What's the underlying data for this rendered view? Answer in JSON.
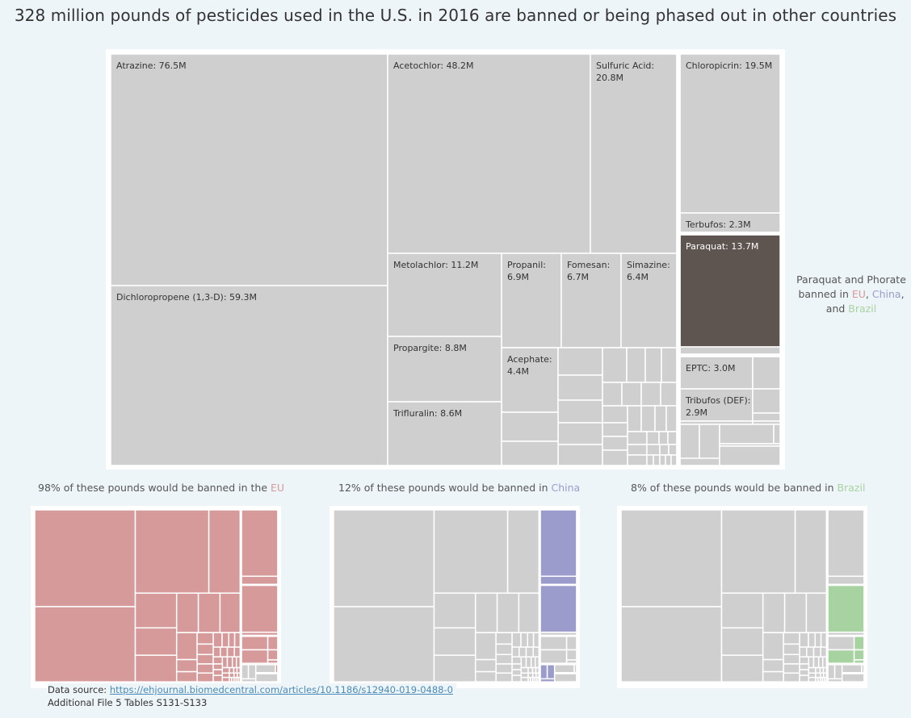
{
  "title": "328 million pounds of pesticides used in the U.S. in 2016 are banned or being phased out in other countries",
  "note": {
    "line1": "Paraquat and Phorate",
    "line2_prefix": "banned in ",
    "eu": "EU",
    "comma": ", ",
    "china": "China",
    "line3_prefix": "and ",
    "brazil": "Brazil"
  },
  "subtitles": {
    "eu": {
      "text": "98% of these pounds would be banned in the ",
      "country": "EU"
    },
    "china": {
      "text": "12% of these pounds would be banned in ",
      "country": "China"
    },
    "brazil": {
      "text": "8% of these pounds would be banned in ",
      "country": "Brazil"
    }
  },
  "source": {
    "prefix": "Data source: ",
    "link": "https://ehjournal.biomedcentral.com/articles/10.1186/s12940-019-0488-0",
    "line2": "Additional File 5 Tables S131-S133"
  },
  "colors": {
    "default": "#cfcfcf",
    "highlight": "#5e5450",
    "eu": "#d69a9a",
    "china": "#9b9ccb",
    "brazil": "#a7d3a0",
    "background": "#eef5f8"
  },
  "chart_data": {
    "type": "treemap",
    "unit": "million pounds",
    "items": [
      {
        "name": "Atrazine",
        "value": 76.5,
        "label": "Atrazine: 76.5M"
      },
      {
        "name": "Dichloropropene (1,3-D)",
        "value": 59.3,
        "label": "Dichloropropene (1,3-D): 59.3M"
      },
      {
        "name": "Acetochlor",
        "value": 48.2,
        "label": "Acetochlor: 48.2M"
      },
      {
        "name": "Sulfuric Acid",
        "value": 20.8,
        "label": "Sulfuric Acid:\n20.8M"
      },
      {
        "name": "Chloropicrin",
        "value": 19.5,
        "label": "Chloropicrin: 19.5M"
      },
      {
        "name": "Terbufos",
        "value": 2.3,
        "label": "Terbufos: 2.3M"
      },
      {
        "name": "Paraquat",
        "value": 13.7,
        "label": "Paraquat: 13.7M"
      },
      {
        "name": "Metolachlor",
        "value": 11.2,
        "label": "Metolachlor: 11.2M"
      },
      {
        "name": "Propanil",
        "value": 6.9,
        "label": "Propanil:\n6.9M"
      },
      {
        "name": "Fomesan",
        "value": 6.7,
        "label": "Fomesan:\n6.7M"
      },
      {
        "name": "Simazine",
        "value": 6.4,
        "label": "Simazine:\n6.4M"
      },
      {
        "name": "Propargite",
        "value": 8.8,
        "label": "Propargite: 8.8M"
      },
      {
        "name": "Acephate",
        "value": 4.4,
        "label": "Acephate:\n4.4M"
      },
      {
        "name": "Trifluralin",
        "value": 8.6,
        "label": "Trifluralin: 8.6M"
      },
      {
        "name": "EPTC",
        "value": 3.0,
        "label": "EPTC: 3.0M"
      },
      {
        "name": "Tribufos (DEF)",
        "value": 2.9,
        "label": "Tribufos (DEF):\n2.9M"
      }
    ],
    "banned_share": {
      "EU": 98,
      "China": 12,
      "Brazil": 8
    }
  }
}
